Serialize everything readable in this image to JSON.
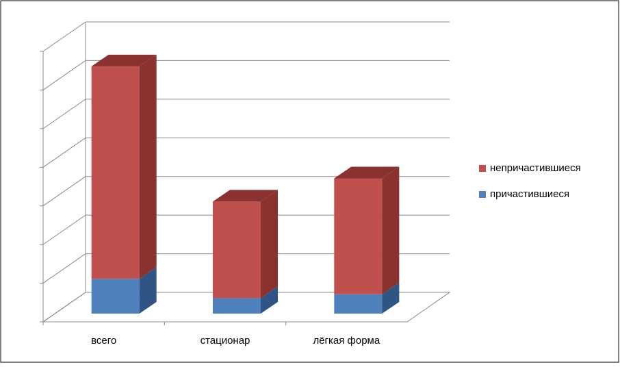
{
  "chart_data": {
    "type": "bar3d_stacked",
    "categories": [
      "всего",
      "стационар",
      "лёгкая форма"
    ],
    "series": [
      {
        "name": "причастившиеся",
        "color": "#4f81bd",
        "side_color": "#2f5584",
        "values": [
          0.9,
          0.4,
          0.5
        ]
      },
      {
        "name": "непричастившиеся",
        "color": "#c0504d",
        "side_color": "#8a3230",
        "values": [
          5.5,
          2.5,
          3.0
        ]
      }
    ],
    "ylim": [
      0,
      7
    ],
    "yticks": [
      0,
      1,
      2,
      3,
      4,
      5,
      6,
      7
    ],
    "grid": true,
    "legend": "right"
  }
}
